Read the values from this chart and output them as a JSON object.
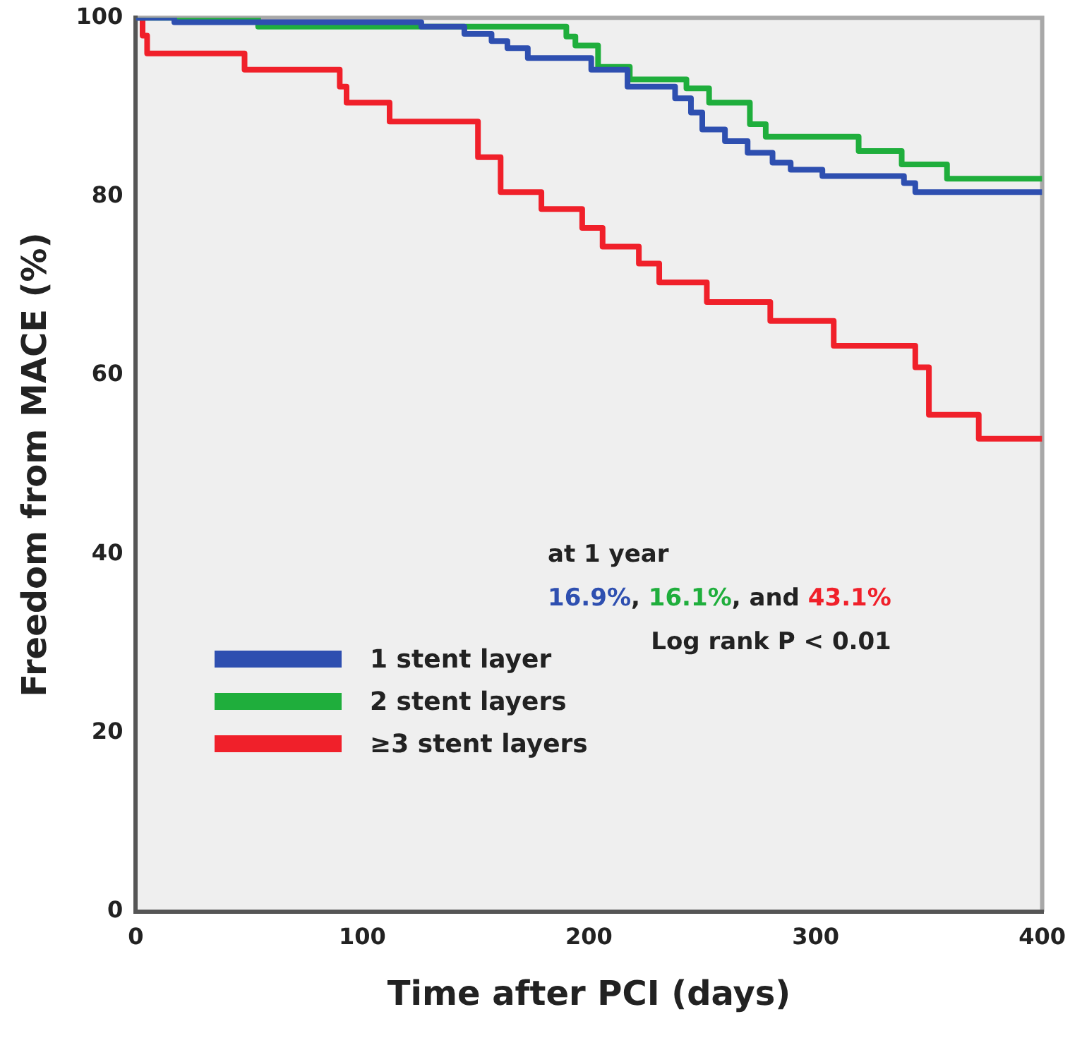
{
  "chart_data": {
    "type": "step",
    "xlabel": "Time after PCI (days)",
    "ylabel": "Freedom from MACE (%)",
    "xlim": [
      0,
      400
    ],
    "xticks": [
      0,
      100,
      200,
      300,
      400
    ],
    "ylim": [
      0,
      100
    ],
    "yticks": [
      0,
      20,
      40,
      60,
      80,
      100
    ],
    "grid": false,
    "legend": "bottom left",
    "marker": "none",
    "line_style": "solid",
    "series": [
      {
        "name": "1 stent layer",
        "color": "#2e4fb0",
        "x": [
          0,
          17,
          126,
          145,
          157,
          164,
          173,
          201,
          217,
          238,
          245,
          250,
          260,
          270,
          281,
          289,
          303,
          339,
          344,
          400
        ],
        "values": [
          100,
          99.5,
          99,
          98.2,
          97.4,
          96.6,
          95.5,
          94.2,
          92.3,
          91,
          89.4,
          87.5,
          86.2,
          84.9,
          83.8,
          83,
          82.3,
          81.5,
          80.5,
          80.5
        ]
      },
      {
        "name": "2 stent layers",
        "color": "#1fae3c",
        "x": [
          0,
          54,
          190,
          194,
          204,
          218,
          243,
          253,
          271,
          278,
          319,
          338,
          358,
          400
        ],
        "values": [
          100,
          99,
          97.9,
          96.9,
          94.5,
          93.1,
          92.1,
          90.5,
          88.1,
          86.7,
          85.1,
          83.6,
          82,
          82
        ]
      },
      {
        "name": "≥3 stent layers",
        "color": "#f0202a",
        "x": [
          0,
          3,
          5,
          48,
          90,
          93,
          112,
          151,
          161,
          179,
          197,
          206,
          222,
          231,
          252,
          280,
          308,
          344,
          350,
          372,
          400
        ],
        "values": [
          100,
          98,
          96,
          94.2,
          92.3,
          90.5,
          88.4,
          84.4,
          80.5,
          78.6,
          76.5,
          74.4,
          72.5,
          70.4,
          68.2,
          66.1,
          63.3,
          60.9,
          55.6,
          52.9,
          52.9
        ]
      }
    ],
    "annotations": [
      "at 1 year",
      "16.9%, 16.1%, and 43.1%",
      "Log rank P < 0.01"
    ]
  }
}
